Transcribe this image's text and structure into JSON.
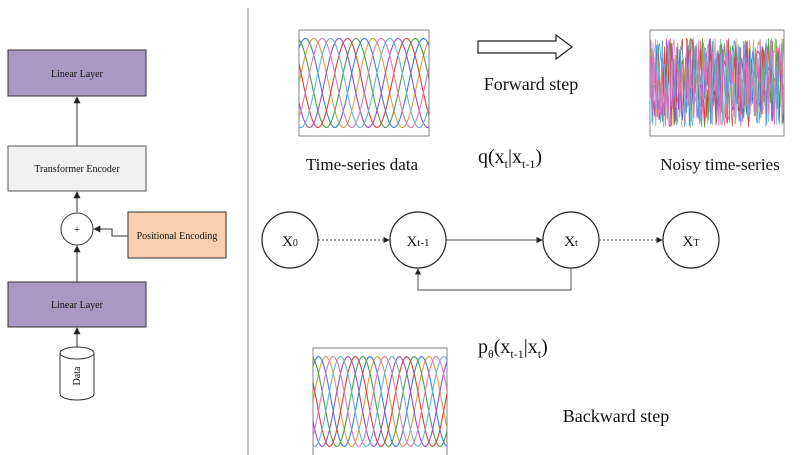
{
  "architecture": {
    "top_linear_label": "Linear Layer",
    "transformer_label": "Transformer Encoder",
    "plus_symbol": "+",
    "positional_label": "Positional Encoding",
    "bottom_linear_label": "Linear Layer",
    "data_label": "Data"
  },
  "diffusion": {
    "time_series_caption": "Time-series data",
    "forward_label": "Forward step",
    "noisy_caption": "Noisy time-series",
    "forward_formula": {
      "q": "q(x",
      "t": "t",
      "bar": "|x",
      "tm1": "t-1",
      "close": ")"
    },
    "nodes": [
      {
        "main": "X",
        "sub": "0"
      },
      {
        "main": "X",
        "sub": "t-1"
      },
      {
        "main": "X",
        "sub": "t"
      },
      {
        "main": "X",
        "sub": "T"
      }
    ],
    "backward_formula": {
      "p": "p",
      "theta": "θ",
      "open": "(x",
      "tm1": "t-1",
      "bar": "|x",
      "t": "t",
      "close": ")"
    },
    "backward_label": "Backward step"
  },
  "colors": {
    "linear_layer_fill": "#a898c2",
    "transformer_fill": "#f1f1f1",
    "positional_fill": "#f8d0ad",
    "series": [
      "#d9a13a",
      "#3d7fd1",
      "#4a9e4a",
      "#d1453b",
      "#9a4fc2",
      "#63b6d6",
      "#e07ab8"
    ]
  },
  "icons": [
    "right-arrow-icon",
    "cylinder-icon"
  ]
}
